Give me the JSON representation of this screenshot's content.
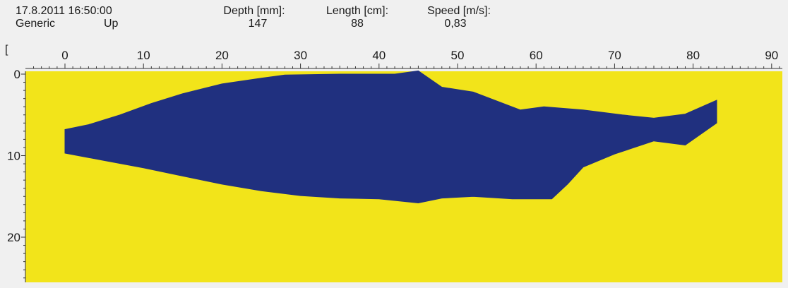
{
  "header": {
    "timestamp": "17.8.2011 16:50:00",
    "species": "Generic",
    "direction": "Up",
    "depth_label": "Depth [mm]:",
    "depth_value": "147",
    "length_label": "Length [cm]:",
    "length_value": "88",
    "speed_label": "Speed [m/s]:",
    "speed_value": "0,83",
    "bracket": "["
  },
  "colors": {
    "background": "#f2e41a",
    "silhouette": "#20307f",
    "panel": "#f0f0f0",
    "axis": "#333333"
  },
  "chart_data": {
    "type": "area",
    "title": "",
    "xlabel": "",
    "ylabel": "",
    "xlim": [
      -3,
      90
    ],
    "ylim": [
      0,
      26
    ],
    "x_ticks": [
      0,
      10,
      20,
      30,
      40,
      50,
      60,
      70,
      80,
      90
    ],
    "y_ticks": [
      0,
      10,
      20
    ],
    "grid": false,
    "outline_top": [
      [
        0,
        6.8
      ],
      [
        3,
        6.2
      ],
      [
        7,
        5.0
      ],
      [
        11,
        3.6
      ],
      [
        15,
        2.4
      ],
      [
        20,
        1.2
      ],
      [
        25,
        0.5
      ],
      [
        28,
        0.1
      ],
      [
        35,
        0.0
      ],
      [
        42,
        0.0
      ],
      [
        45,
        -0.4
      ],
      [
        48,
        1.6
      ],
      [
        52,
        2.2
      ],
      [
        58,
        4.4
      ],
      [
        61,
        4.0
      ],
      [
        66,
        4.4
      ],
      [
        71,
        5.0
      ],
      [
        75,
        5.4
      ],
      [
        79,
        4.9
      ],
      [
        83,
        3.2
      ],
      [
        83,
        6.0
      ]
    ],
    "outline_bottom": [
      [
        0,
        9.7
      ],
      [
        5,
        10.6
      ],
      [
        10,
        11.5
      ],
      [
        15,
        12.5
      ],
      [
        20,
        13.5
      ],
      [
        25,
        14.3
      ],
      [
        30,
        14.9
      ],
      [
        35,
        15.2
      ],
      [
        40,
        15.3
      ],
      [
        45,
        15.8
      ],
      [
        48,
        15.2
      ],
      [
        52,
        15.0
      ],
      [
        57,
        15.3
      ],
      [
        62,
        15.3
      ],
      [
        64,
        13.5
      ],
      [
        66,
        11.4
      ],
      [
        70,
        9.8
      ],
      [
        75,
        8.2
      ],
      [
        79,
        8.7
      ],
      [
        83,
        6.0
      ]
    ]
  }
}
